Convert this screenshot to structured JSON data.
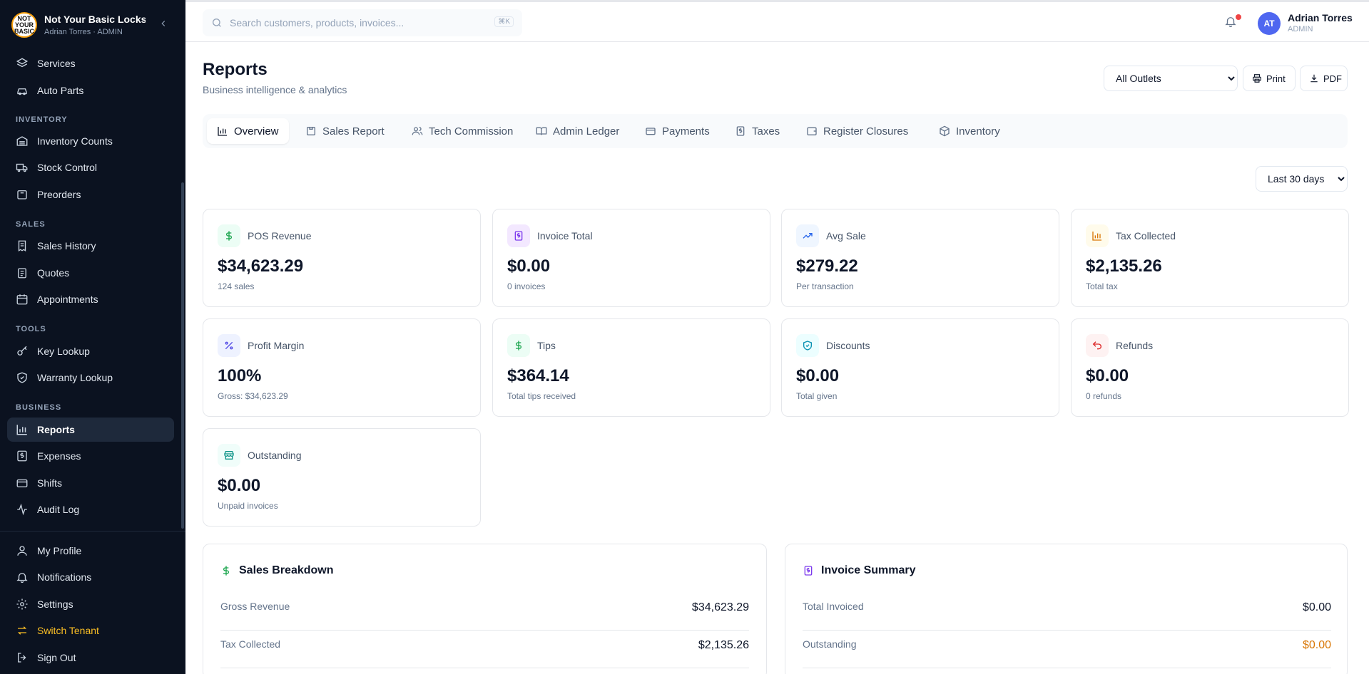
{
  "brand": {
    "name": "Not Your Basic Locksmith",
    "user_line": "Adrian Torres · ADMIN",
    "logo_text": "NOT YOUR BASIC"
  },
  "sidebar": {
    "top_items": [
      {
        "label": "Services",
        "icon": "layers-icon"
      },
      {
        "label": "Auto Parts",
        "icon": "car-icon"
      }
    ],
    "sections": {
      "inventory": "INVENTORY",
      "sales": "SALES",
      "tools": "TOOLS",
      "business": "BUSINESS"
    },
    "inventory_items": [
      {
        "label": "Inventory Counts",
        "icon": "warehouse-icon"
      },
      {
        "label": "Stock Control",
        "icon": "truck-icon"
      },
      {
        "label": "Preorders",
        "icon": "package-icon"
      }
    ],
    "sales_items": [
      {
        "label": "Sales History",
        "icon": "receipt-icon"
      },
      {
        "label": "Quotes",
        "icon": "clipboard-icon"
      },
      {
        "label": "Appointments",
        "icon": "calendar-icon"
      }
    ],
    "tools_items": [
      {
        "label": "Key Lookup",
        "icon": "key-icon"
      },
      {
        "label": "Warranty Lookup",
        "icon": "shield-check-icon"
      }
    ],
    "business_items": [
      {
        "label": "Reports",
        "icon": "bar-chart-icon",
        "active": true
      },
      {
        "label": "Expenses",
        "icon": "dollar-receipt-icon"
      },
      {
        "label": "Shifts",
        "icon": "card-icon"
      },
      {
        "label": "Audit Log",
        "icon": "activity-icon"
      }
    ],
    "bottom_items": [
      {
        "label": "My Profile",
        "icon": "user-icon"
      },
      {
        "label": "Notifications",
        "icon": "bell-icon"
      },
      {
        "label": "Settings",
        "icon": "gear-icon"
      },
      {
        "label": "Switch Tenant",
        "icon": "switch-icon"
      },
      {
        "label": "Sign Out",
        "icon": "sign-out-icon"
      }
    ]
  },
  "header": {
    "search_placeholder": "Search customers, products, invoices...",
    "search_shortcut": "⌘K",
    "user_initials": "AT",
    "user_name": "Adrian Torres",
    "user_role": "ADMIN"
  },
  "page": {
    "title": "Reports",
    "subtitle": "Business intelligence & analytics",
    "outlet_options": [
      "All Outlets"
    ],
    "outlet_selected": "All Outlets",
    "print_label": "Print",
    "pdf_label": "PDF",
    "range_options": [
      "Last 30 days"
    ],
    "range_selected": "Last 30 days"
  },
  "tabs": [
    {
      "label": "Overview",
      "icon": "bar-chart-icon",
      "active": true
    },
    {
      "label": "Sales Report",
      "icon": "receipt-icon"
    },
    {
      "label": "Tech Commission",
      "icon": "users-icon"
    },
    {
      "label": "Admin Ledger",
      "icon": "book-icon"
    },
    {
      "label": "Payments",
      "icon": "credit-card-icon"
    },
    {
      "label": "Taxes",
      "icon": "dollar-receipt-icon"
    },
    {
      "label": "Register Closures",
      "icon": "wallet-icon"
    },
    {
      "label": "Inventory",
      "icon": "box-icon"
    }
  ],
  "cards": [
    {
      "label": "POS Revenue",
      "value": "$34,623.29",
      "sub": "124 sales",
      "icon": "dollar-icon",
      "color": "#16a34a",
      "bg": "#ecfdf5"
    },
    {
      "label": "Invoice Total",
      "value": "$0.00",
      "sub": "0 invoices",
      "icon": "invoice-icon",
      "color": "#7c3aed",
      "bg": "#f3e8ff"
    },
    {
      "label": "Avg Sale",
      "value": "$279.22",
      "sub": "Per transaction",
      "icon": "trending-up-icon",
      "color": "#2563eb",
      "bg": "#eff6ff"
    },
    {
      "label": "Tax Collected",
      "value": "$2,135.26",
      "sub": "Total tax",
      "icon": "bar-chart-icon",
      "color": "#d97706",
      "bg": "#fffbeb"
    },
    {
      "label": "Profit Margin",
      "value": "100%",
      "sub": "Gross: $34,623.29",
      "icon": "percent-icon",
      "color": "#4f46e5",
      "bg": "#eef2ff"
    },
    {
      "label": "Tips",
      "value": "$364.14",
      "sub": "Total tips received",
      "icon": "dollar-icon",
      "color": "#16a34a",
      "bg": "#ecfdf5"
    },
    {
      "label": "Discounts",
      "value": "$0.00",
      "sub": "Total given",
      "icon": "shield-check-icon",
      "color": "#0891b2",
      "bg": "#ecfeff"
    },
    {
      "label": "Refunds",
      "value": "$0.00",
      "sub": "0 refunds",
      "icon": "undo-icon",
      "color": "#dc2626",
      "bg": "#fef2f2"
    },
    {
      "label": "Outstanding",
      "value": "$0.00",
      "sub": "Unpaid invoices",
      "icon": "store-icon",
      "color": "#0d9488",
      "bg": "#f0fdfa"
    }
  ],
  "sales_breakdown": {
    "title": "Sales Breakdown",
    "rows": [
      {
        "label": "Gross Revenue",
        "value": "$34,623.29"
      },
      {
        "label": "Tax Collected",
        "value": "$2,135.26"
      }
    ]
  },
  "invoice_summary": {
    "title": "Invoice Summary",
    "rows": [
      {
        "label": "Total Invoiced",
        "value": "$0.00"
      },
      {
        "label": "Outstanding",
        "value": "$0.00"
      }
    ]
  }
}
